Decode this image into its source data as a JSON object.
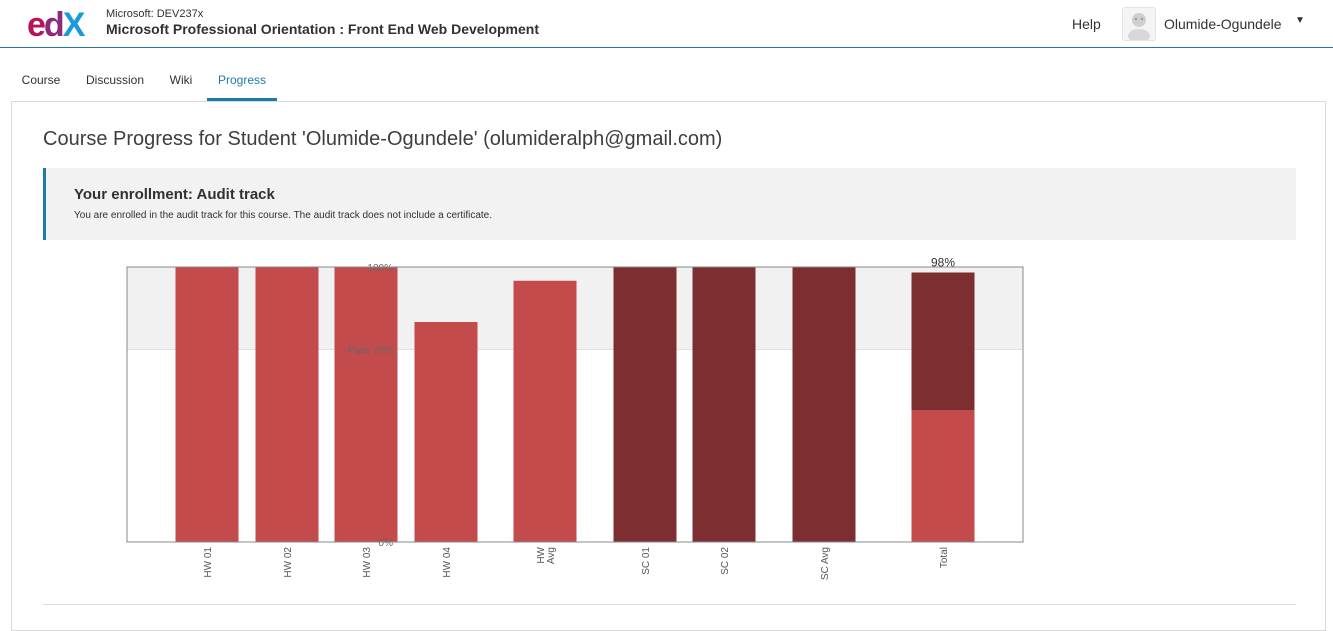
{
  "header": {
    "logo_text": "edX",
    "course_org": "Microsoft: DEV237x",
    "course_title": "Microsoft Professional Orientation : Front End Web Development",
    "help": "Help",
    "username": "Olumide-Ogundele",
    "caret": "▼"
  },
  "tabs": [
    {
      "label": "Course"
    },
    {
      "label": "Discussion"
    },
    {
      "label": "Wiki"
    },
    {
      "label": "Progress"
    }
  ],
  "page": {
    "title": "Course Progress for Student 'Olumide-Ogundele' (olumideralph@gmail.com)"
  },
  "enrollment": {
    "title": "Your enrollment: Audit track",
    "text": "You are enrolled in the audit track for this course. The audit track does not include a certificate."
  },
  "chart_data": {
    "type": "bar",
    "categories": [
      "HW 01",
      "HW 02",
      "HW 03",
      "HW 04",
      "HW Avg",
      "SC 01",
      "SC 02",
      "SC Avg",
      "Total"
    ],
    "values": [
      100,
      100,
      100,
      80,
      95,
      100,
      100,
      100,
      98
    ],
    "stacked_total": [
      {
        "name": "HW",
        "value": 48
      },
      {
        "name": "SC",
        "value": 50
      }
    ],
    "total_label": "98%",
    "ylim": [
      0,
      100
    ],
    "y_ticks": [
      {
        "value": 0,
        "label": "0%"
      },
      {
        "value": 70,
        "label": "Pass 70%"
      },
      {
        "value": 100,
        "label": "100%"
      }
    ],
    "pass_threshold": 70,
    "colors": {
      "HW": "#c34b4c",
      "SC": "#7d2e30",
      "pass_band": "#f1f1f1",
      "axis": "#888888"
    },
    "series_colors": [
      "HW",
      "HW",
      "HW",
      "HW",
      "HW",
      "SC",
      "SC",
      "SC",
      "stacked"
    ],
    "category_label_lines": [
      [
        "HW 01"
      ],
      [
        "HW 02"
      ],
      [
        "HW 03"
      ],
      [
        "HW 04"
      ],
      [
        "HW",
        "Avg"
      ],
      [
        "SC 01"
      ],
      [
        "SC 02"
      ],
      [
        "SC Avg"
      ],
      [
        "Total"
      ]
    ]
  }
}
